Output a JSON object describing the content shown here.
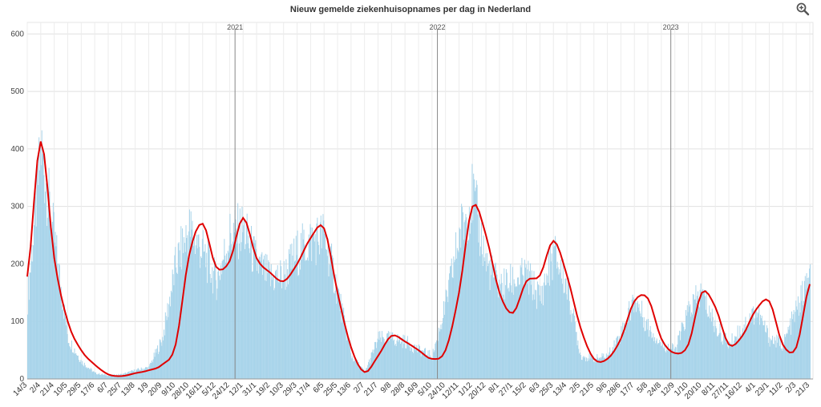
{
  "chart_data": {
    "type": "bar",
    "title": "Nieuw gemelde ziekenhuisopnames per dag in Nederland",
    "ylim": [
      0,
      620
    ],
    "yticks": [
      0,
      100,
      200,
      300,
      400,
      500,
      600
    ],
    "grid": true,
    "x_tick_labels": [
      "14/3",
      "2/4",
      "21/4",
      "10/5",
      "29/5",
      "17/6",
      "6/7",
      "25/7",
      "13/8",
      "1/9",
      "20/9",
      "9/10",
      "28/10",
      "16/11",
      "5/12",
      "24/12",
      "12/1",
      "31/1",
      "19/2",
      "10/3",
      "29/3",
      "17/4",
      "6/5",
      "25/5",
      "13/6",
      "2/7",
      "21/7",
      "9/8",
      "28/8",
      "16/9",
      "5/10",
      "24/10",
      "12/11",
      "1/12",
      "20/12",
      "8/1",
      "27/1",
      "15/2",
      "6/3",
      "25/3",
      "13/4",
      "2/5",
      "21/5",
      "9/6",
      "28/6",
      "17/7",
      "5/8",
      "24/8",
      "12/9",
      "1/10",
      "20/10",
      "8/11",
      "27/11",
      "16/12",
      "4/1",
      "23/1",
      "11/2",
      "2/3",
      "21/3"
    ],
    "year_markers": [
      {
        "label": "2021",
        "tick_index": 15.4
      },
      {
        "label": "2022",
        "tick_index": 30.4
      },
      {
        "label": "2023",
        "tick_index": 47.7
      }
    ],
    "series": [
      {
        "type": "bar",
        "values_at_ticks": [
          140,
          400,
          240,
          70,
          30,
          10,
          6,
          8,
          15,
          20,
          70,
          200,
          260,
          220,
          170,
          250,
          260,
          200,
          175,
          180,
          220,
          240,
          250,
          150,
          40,
          12,
          70,
          70,
          65,
          50,
          40,
          130,
          250,
          320,
          200,
          160,
          170,
          180,
          140,
          220,
          160,
          40,
          35,
          40,
          80,
          140,
          90,
          60,
          50,
          120,
          150,
          90,
          60,
          90,
          120,
          70,
          60,
          120,
          180
        ],
        "color": "#a8d4ea"
      },
      {
        "type": "line",
        "color": "#e00000",
        "values_at_ticks": [
          178,
          413,
          210,
          100,
          50,
          25,
          8,
          5,
          10,
          15,
          25,
          60,
          215,
          270,
          195,
          205,
          280,
          210,
          185,
          170,
          200,
          245,
          262,
          150,
          55,
          12,
          40,
          75,
          65,
          50,
          35,
          50,
          150,
          300,
          250,
          150,
          115,
          170,
          180,
          240,
          180,
          90,
          35,
          35,
          70,
          135,
          140,
          70,
          45,
          60,
          150,
          125,
          60,
          75,
          120,
          135,
          60,
          55,
          165
        ]
      }
    ]
  },
  "toolbar": {
    "zoom_icon": "zoom-in-icon"
  }
}
